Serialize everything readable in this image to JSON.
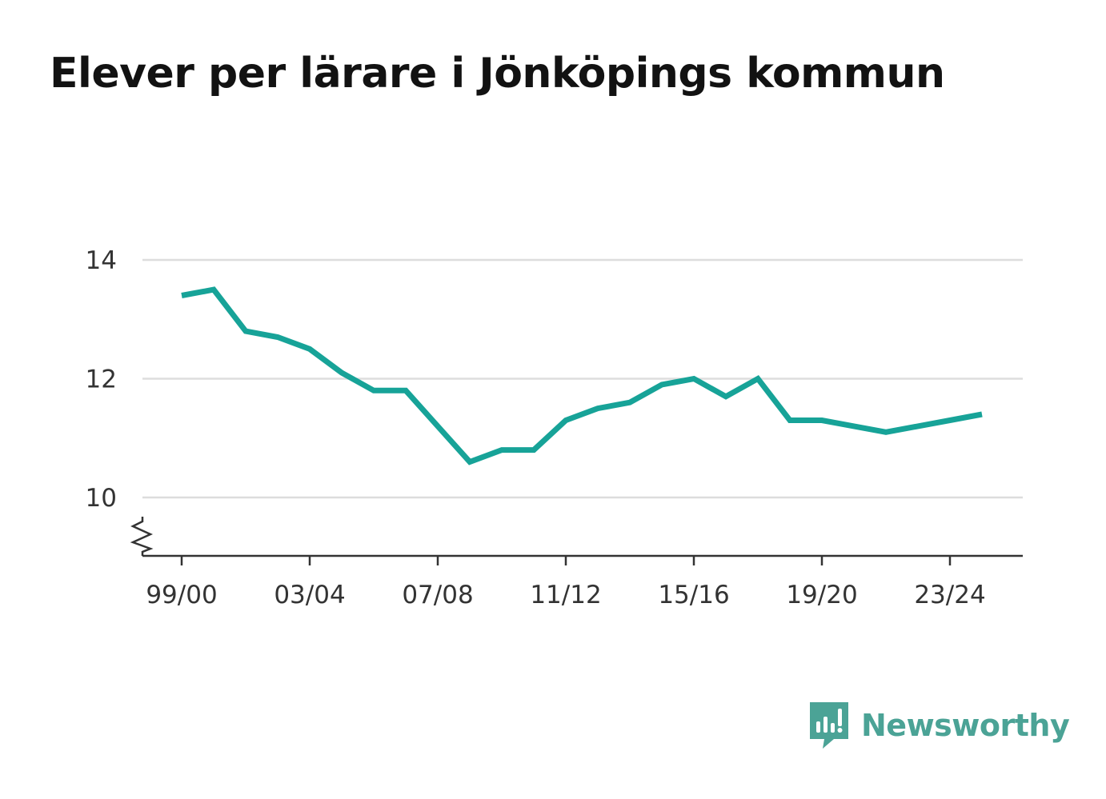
{
  "title": "Elever per lärare i Jönköpings kommun",
  "brand": {
    "name": "Newsworthy",
    "icon": "newsworthy-logo-icon",
    "color": "#4ba396"
  },
  "colors": {
    "line": "#17a398",
    "grid": "#dddddd",
    "axis": "#333333"
  },
  "chart_data": {
    "type": "line",
    "title": "Elever per lärare i Jönköpings kommun",
    "xlabel": "",
    "ylabel": "",
    "x": [
      "99/00",
      "00/01",
      "01/02",
      "02/03",
      "03/04",
      "04/05",
      "05/06",
      "06/07",
      "07/08",
      "08/09",
      "09/10",
      "10/11",
      "11/12",
      "12/13",
      "13/14",
      "14/15",
      "15/16",
      "16/17",
      "17/18",
      "18/19",
      "19/20",
      "20/21",
      "21/22",
      "22/23",
      "23/24",
      "24/25"
    ],
    "x_ticks": [
      "99/00",
      "03/04",
      "07/08",
      "11/12",
      "15/16",
      "19/20",
      "23/24"
    ],
    "series": [
      {
        "values": [
          13.4,
          13.5,
          12.8,
          12.7,
          12.5,
          12.1,
          11.8,
          11.8,
          11.2,
          10.6,
          10.8,
          10.8,
          11.3,
          11.5,
          11.6,
          11.9,
          12.0,
          11.7,
          12.0,
          11.3,
          11.3,
          11.2,
          11.1,
          11.2,
          11.3,
          11.4
        ]
      }
    ],
    "y_ticks": [
      10,
      12,
      14
    ],
    "ylim": [
      9,
      14
    ],
    "y_axis_break": true,
    "grid": true,
    "legend": "none"
  }
}
